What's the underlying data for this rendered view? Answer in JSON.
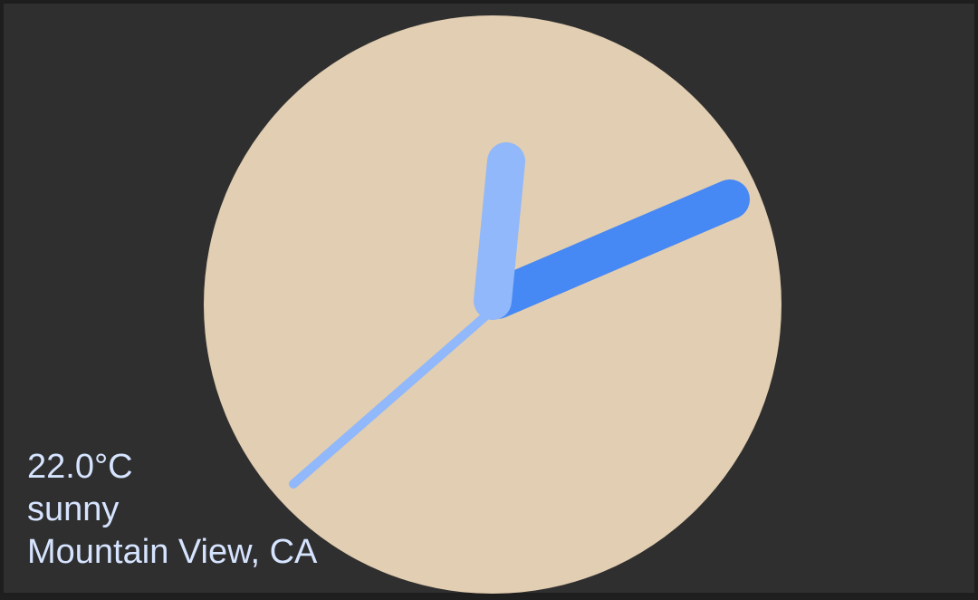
{
  "widget": {
    "type": "analog-clock",
    "colors": {
      "background": "#2f2f2f",
      "dial": "#e2ceb2",
      "hour_hand": "#90b8fa",
      "minute_hand": "#4688f4",
      "second_hand": "#90b8fa",
      "text": "#d6e4ff"
    }
  },
  "weather": {
    "temperature": "22.0°C",
    "condition": "sunny",
    "location": "Mountain View, CA"
  }
}
